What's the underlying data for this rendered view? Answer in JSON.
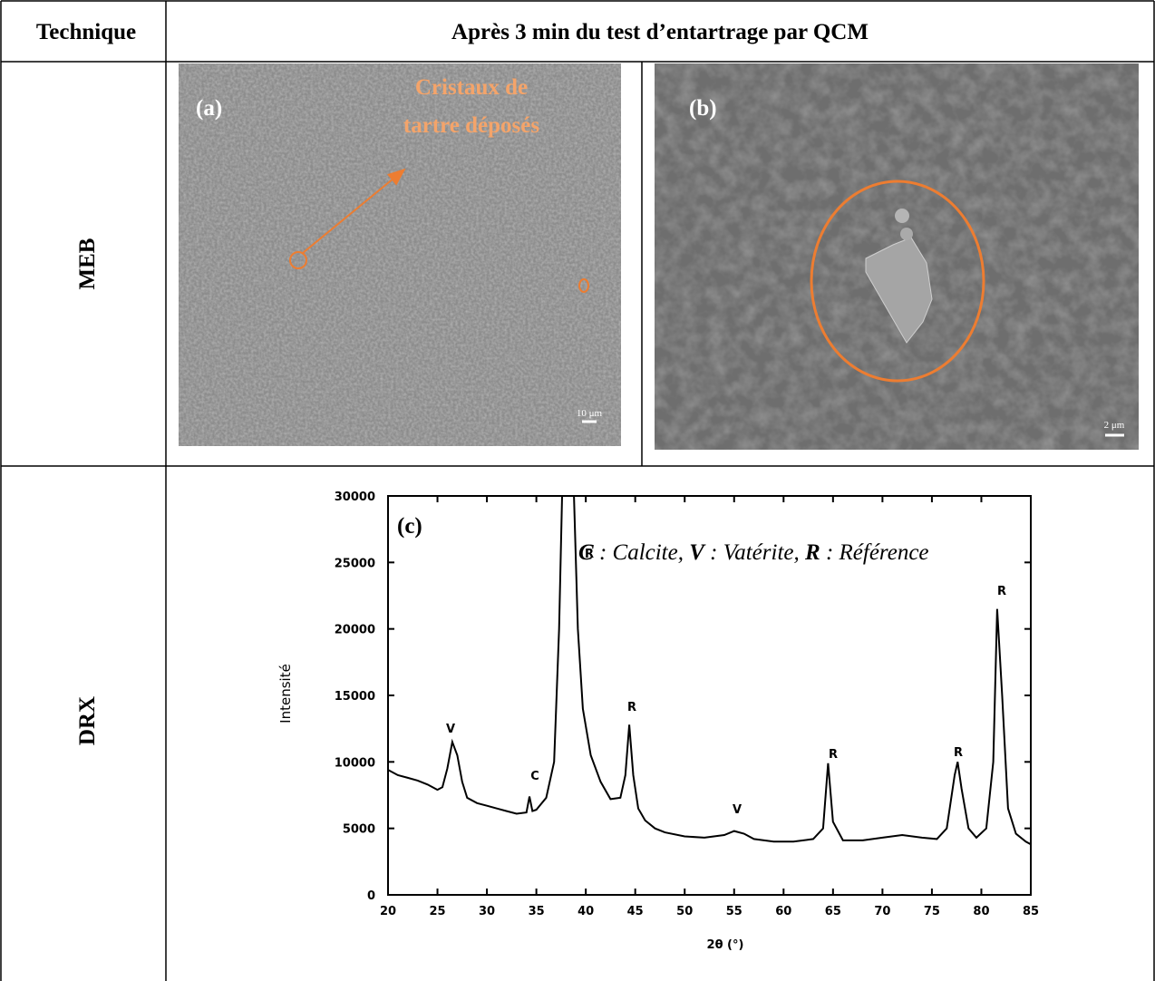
{
  "table": {
    "header": [
      "Technique",
      "Après 3 min du test d’entartrage par QCM"
    ],
    "rows": [
      {
        "technique": "MEB",
        "panels": [
          {
            "label": "(a)",
            "annotation": [
              "Cristaux de",
              "tartre déposés"
            ],
            "scale": "10 μm"
          },
          {
            "label": "(b)",
            "scale": "2 μm"
          }
        ]
      },
      {
        "technique": "DRX",
        "chart": {
          "type": "line",
          "label": "(c)",
          "legend_parts": [
            "C",
            " : Calcite, ",
            "V",
            " : Vatérite, ",
            "R",
            " : Référence"
          ],
          "peak_labels": [
            "V",
            "C",
            "R",
            "R",
            "V",
            "R",
            "R",
            "R"
          ],
          "xlabel": "2θ (°)",
          "ylabel": "Intensité",
          "color": "#000000",
          "xlim": [
            20,
            85
          ],
          "ylim": [
            0,
            30000
          ],
          "xticks": [
            20,
            25,
            30,
            35,
            40,
            45,
            50,
            55,
            60,
            65,
            70,
            75,
            80,
            85
          ],
          "yticks": [
            0,
            5000,
            10000,
            15000,
            20000,
            25000,
            30000
          ],
          "x": [
            20,
            21,
            22,
            23,
            24,
            25,
            25.5,
            26,
            26.5,
            27,
            27.5,
            28,
            29,
            30,
            31,
            32,
            33,
            34,
            34.3,
            34.6,
            35,
            36,
            36.8,
            37.3,
            37.6,
            38.8,
            39.2,
            39.7,
            40.5,
            41.5,
            42.5,
            43.5,
            44,
            44.4,
            44.8,
            45.3,
            46,
            47,
            48,
            50,
            52,
            54,
            55,
            56,
            57,
            59,
            61,
            63,
            64,
            64.5,
            65,
            66,
            68,
            70,
            72,
            74,
            75.5,
            76.5,
            77.3,
            77.6,
            78,
            78.7,
            79.5,
            80.5,
            81.2,
            81.6,
            82.1,
            82.7,
            83.5,
            84.5,
            85
          ],
          "values": [
            9400,
            9000,
            8800,
            8600,
            8300,
            7900,
            8100,
            9500,
            11500,
            10500,
            8500,
            7300,
            6900,
            6700,
            6500,
            6300,
            6100,
            6200,
            7400,
            6300,
            6400,
            7300,
            10000,
            20000,
            30000,
            30000,
            20000,
            14000,
            10500,
            8500,
            7200,
            7300,
            9000,
            12800,
            9000,
            6500,
            5600,
            5000,
            4700,
            4400,
            4300,
            4500,
            4800,
            4600,
            4200,
            4000,
            4000,
            4200,
            5000,
            9900,
            5500,
            4100,
            4100,
            4300,
            4500,
            4300,
            4200,
            5000,
            9000,
            10000,
            8000,
            5000,
            4300,
            5000,
            10000,
            21500,
            15000,
            6500,
            4600,
            4000,
            3800
          ]
        }
      }
    ]
  }
}
